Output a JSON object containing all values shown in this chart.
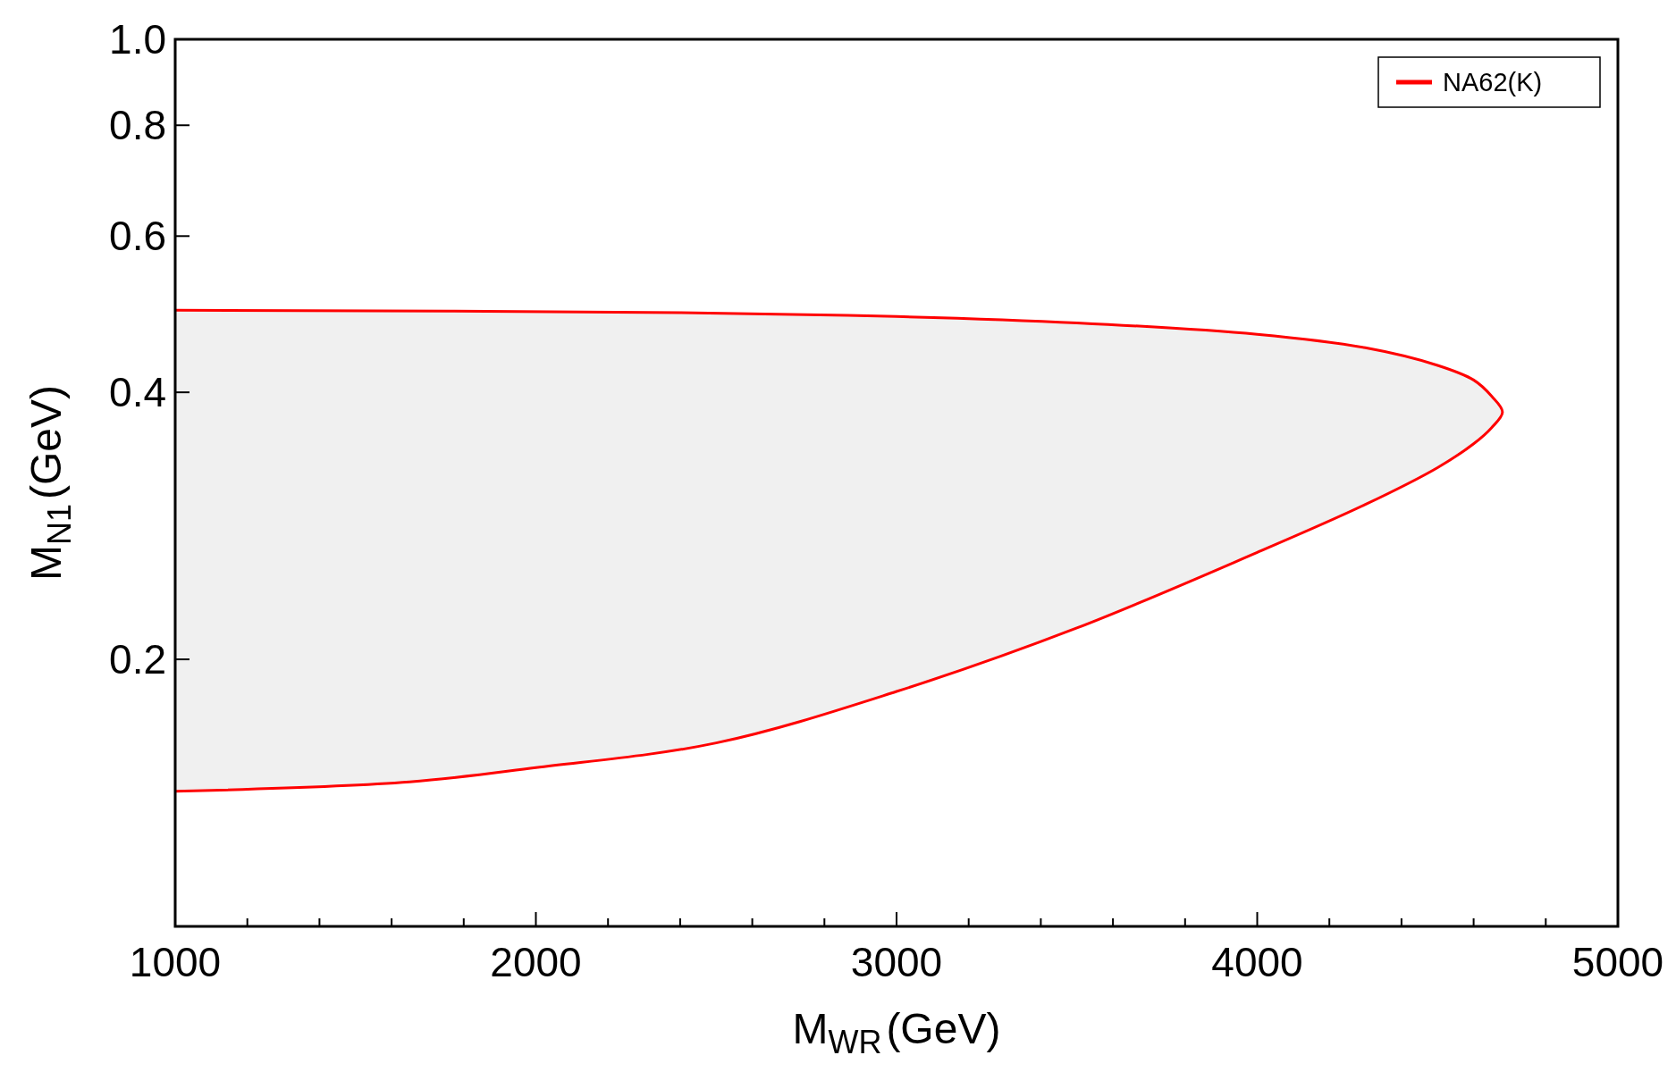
{
  "chart_data": {
    "type": "line",
    "xlabel": "M$_{W}$$_{R}$(GeV)",
    "ylabel": "M$_{N}$$_{1}$(GeV)",
    "log": "y",
    "xlim": [
      1000,
      5000
    ],
    "ylim": [
      0.1,
      1.0
    ],
    "xticks": [
      1000,
      {
        "value": 1200,
        "label": null
      },
      {
        "value": 1400,
        "label": null
      },
      {
        "value": 1600,
        "label": null
      },
      {
        "value": 1800,
        "label": null
      },
      2000,
      {
        "value": 2200,
        "label": null
      },
      {
        "value": 2400,
        "label": null
      },
      {
        "value": 2600,
        "label": null
      },
      {
        "value": 2800,
        "label": null
      },
      3000,
      {
        "value": 3200,
        "label": null
      },
      {
        "value": 3400,
        "label": null
      },
      {
        "value": 3600,
        "label": null
      },
      {
        "value": 3800,
        "label": null
      },
      4000,
      {
        "value": 4200,
        "label": null
      },
      {
        "value": 4400,
        "label": null
      },
      {
        "value": 4600,
        "label": null
      },
      {
        "value": 4800,
        "label": null
      },
      5000
    ],
    "yticks": [
      {
        "value": 0.2,
        "label": "0.2"
      },
      {
        "value": 0.4,
        "label": "0.4"
      },
      {
        "value": 0.6,
        "label": "0.6"
      },
      {
        "value": 0.8,
        "label": "0.8"
      },
      {
        "value": 1.0,
        "label": "1.0"
      }
    ],
    "legend": "top right",
    "grid": false,
    "marker": "none",
    "line_style": "solid",
    "series": [
      {
        "name": "NA62(K)",
        "color": "#ff0000",
        "x": [
          1000,
          2400,
          3000,
          3500,
          4000,
          4300,
          4500,
          4600,
          4650,
          4680,
          4650,
          4600,
          4500,
          4300,
          4000,
          3500,
          3000,
          2500,
          2000,
          1650,
          1000
        ],
        "values": [
          0.495,
          0.492,
          0.487,
          0.479,
          0.465,
          0.449,
          0.429,
          0.413,
          0.396,
          0.38,
          0.365,
          0.35,
          0.329,
          0.299,
          0.264,
          0.217,
          0.184,
          0.161,
          0.151,
          0.1455,
          0.142
        ]
      }
    ]
  }
}
